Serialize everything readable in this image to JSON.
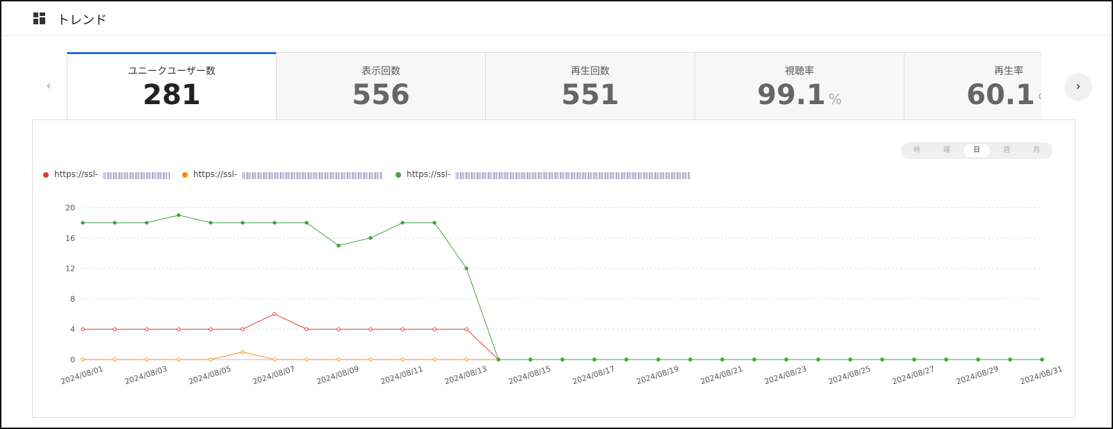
{
  "header": {
    "title": "トレンド"
  },
  "tabs": [
    {
      "label": "ユニークユーザー数",
      "value": "281",
      "unit": ""
    },
    {
      "label": "表示回数",
      "value": "556",
      "unit": ""
    },
    {
      "label": "再生回数",
      "value": "551",
      "unit": ""
    },
    {
      "label": "視聴率",
      "value": "99.1",
      "unit": "%"
    },
    {
      "label": "再生率",
      "value": "60.1",
      "unit": "%"
    }
  ],
  "granularity": {
    "options": [
      "時",
      "曜",
      "日",
      "週",
      "月"
    ],
    "selected": "日"
  },
  "legend": [
    {
      "url": "https://ssl-",
      "color": "#e53935"
    },
    {
      "url": "https://ssl-",
      "color": "#fb8c00"
    },
    {
      "url": "https://ssl-",
      "color": "#43a047"
    }
  ],
  "chart_data": {
    "type": "line",
    "x": [
      "2024/08/01",
      "2024/08/02",
      "2024/08/03",
      "2024/08/04",
      "2024/08/05",
      "2024/08/06",
      "2024/08/07",
      "2024/08/08",
      "2024/08/09",
      "2024/08/10",
      "2024/08/11",
      "2024/08/12",
      "2024/08/13",
      "2024/08/14",
      "2024/08/15",
      "2024/08/16",
      "2024/08/17",
      "2024/08/18",
      "2024/08/19",
      "2024/08/20",
      "2024/08/21",
      "2024/08/22",
      "2024/08/23",
      "2024/08/24",
      "2024/08/25",
      "2024/08/26",
      "2024/08/27",
      "2024/08/28",
      "2024/08/29",
      "2024/08/30",
      "2024/08/31"
    ],
    "x_tick_labels": [
      "2024/08/01",
      "2024/08/03",
      "2024/08/05",
      "2024/08/07",
      "2024/08/09",
      "2024/08/11",
      "2024/08/13",
      "2024/08/15",
      "2024/08/17",
      "2024/08/19",
      "2024/08/21",
      "2024/08/23",
      "2024/08/25",
      "2024/08/27",
      "2024/08/29",
      "2024/08/31"
    ],
    "y_ticks": [
      "0",
      "4",
      "8",
      "12",
      "16",
      "20"
    ],
    "ylim": [
      0,
      20
    ],
    "grid": "horizontal-dashed",
    "legend_position": "top-left",
    "series": [
      {
        "color": "#e53935",
        "values": [
          4,
          4,
          4,
          4,
          4,
          4,
          6,
          4,
          4,
          4,
          4,
          4,
          4,
          0,
          0,
          0,
          0,
          0,
          0,
          0,
          0,
          0,
          0,
          0,
          0,
          0,
          0,
          0,
          0,
          0,
          0
        ]
      },
      {
        "color": "#fb8c00",
        "values": [
          0,
          0,
          0,
          0,
          0,
          1,
          0,
          0,
          0,
          0,
          0,
          0,
          0,
          0,
          0,
          0,
          0,
          0,
          0,
          0,
          0,
          0,
          0,
          0,
          0,
          0,
          0,
          0,
          0,
          0,
          0
        ]
      },
      {
        "color": "#43a047",
        "values": [
          18,
          18,
          18,
          19,
          18,
          18,
          18,
          18,
          15,
          16,
          18,
          18,
          12,
          0,
          0,
          0,
          0,
          0,
          0,
          0,
          0,
          0,
          0,
          0,
          0,
          0,
          0,
          0,
          0,
          0,
          0
        ]
      }
    ]
  }
}
